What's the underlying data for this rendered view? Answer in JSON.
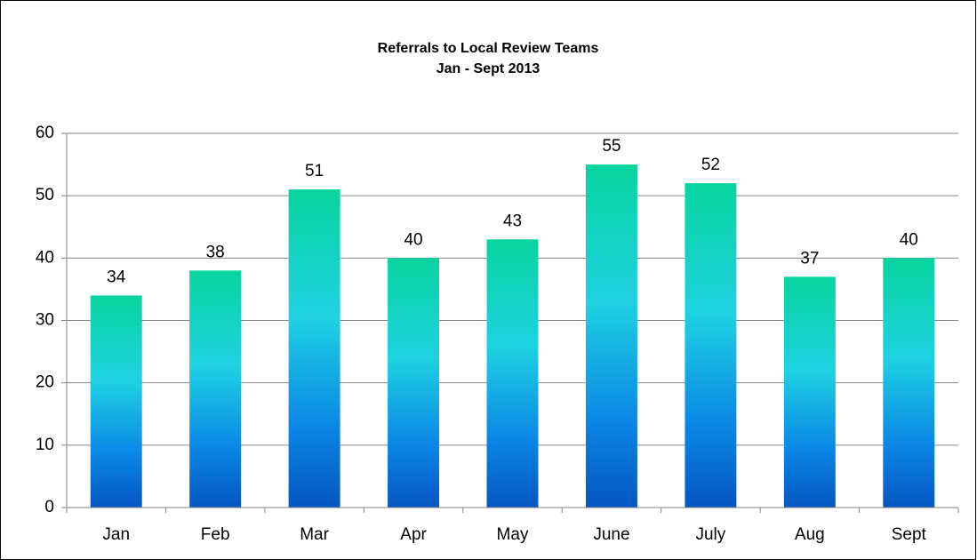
{
  "chart_data": {
    "type": "bar",
    "title": "Referrals to Local Review Teams",
    "subtitle": "Jan - Sept 2013",
    "categories": [
      "Jan",
      "Feb",
      "Mar",
      "Apr",
      "May",
      "June",
      "July",
      "Aug",
      "Sept"
    ],
    "values": [
      34,
      38,
      51,
      40,
      43,
      55,
      52,
      37,
      40
    ],
    "ylim": [
      0,
      60
    ],
    "yticks": [
      0,
      10,
      20,
      30,
      40,
      50,
      60
    ],
    "grid": true
  }
}
